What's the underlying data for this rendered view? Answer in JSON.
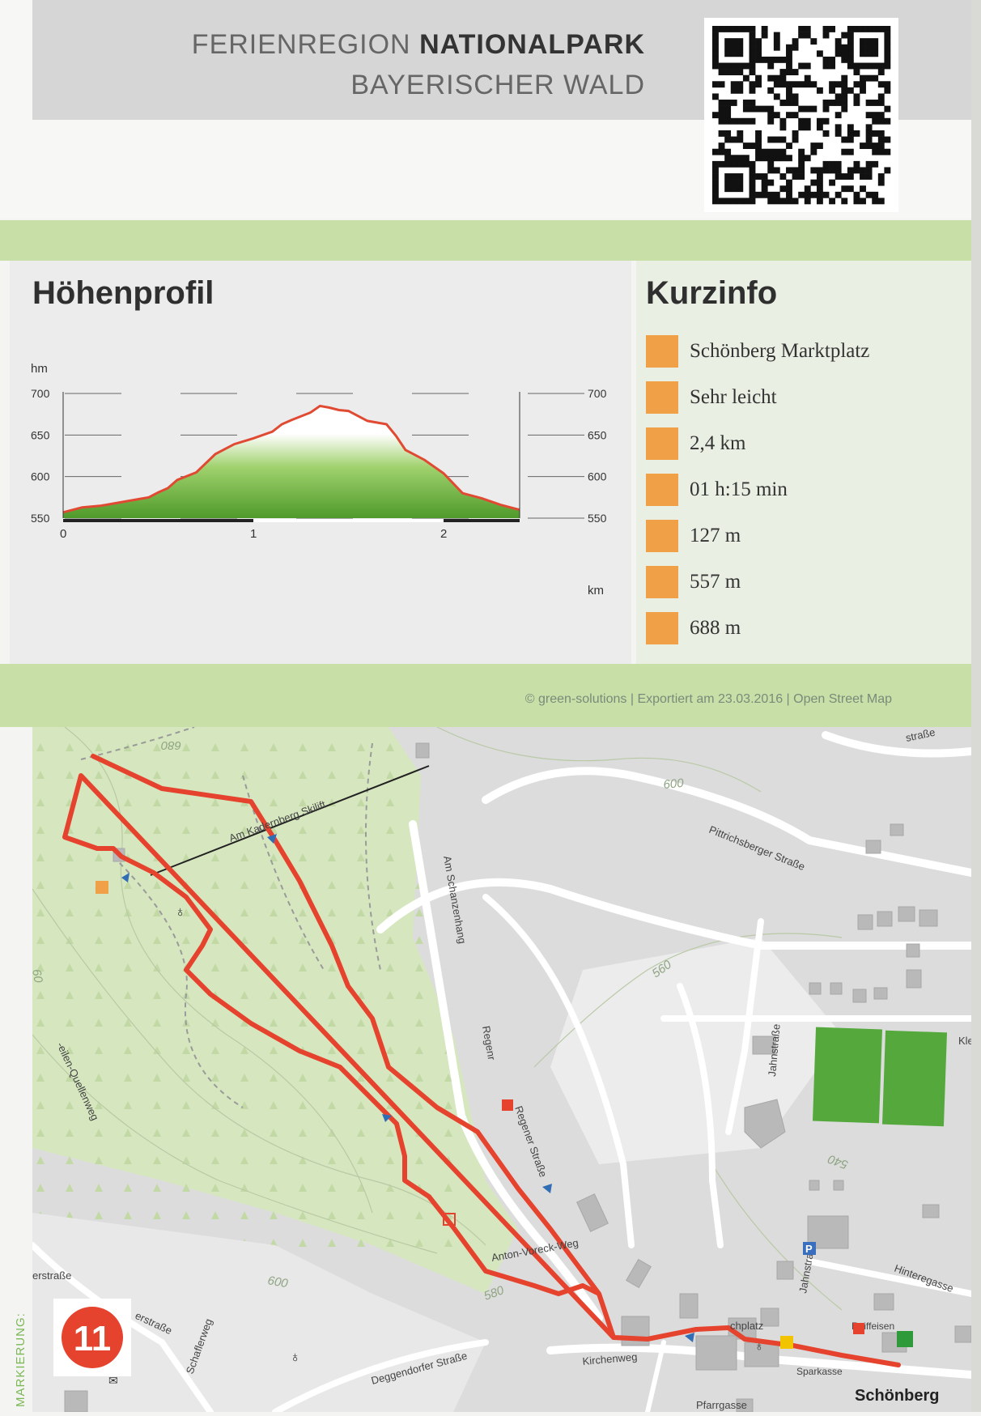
{
  "header": {
    "brand_light": "FERIENREGION",
    "brand_bold": "NATIONALPARK",
    "brand_line2": "BAYERISCHER WALD",
    "qr_icon": "qr-code-icon"
  },
  "profile": {
    "title": "Höhenprofil"
  },
  "chart_data": {
    "type": "area",
    "title": "Höhenprofil",
    "xlabel": "km",
    "ylabel": "hm",
    "xlim": [
      0,
      2.4
    ],
    "ylim": [
      550,
      700
    ],
    "x_ticks": [
      "0",
      "1",
      "2"
    ],
    "y_ticks": [
      "550",
      "600",
      "650",
      "700"
    ],
    "grid": true,
    "series": [
      {
        "x": [
          0,
          0.1,
          0.2,
          0.3,
          0.4,
          0.45,
          0.5,
          0.55,
          0.6,
          0.7,
          0.8,
          0.9,
          1.0,
          1.1,
          1.15,
          1.2,
          1.3,
          1.35,
          1.4,
          1.45,
          1.5,
          1.6,
          1.7,
          1.75,
          1.8,
          1.9,
          2.0,
          2.05,
          2.1,
          2.2,
          2.3,
          2.4
        ],
        "values": [
          557,
          563,
          565,
          569,
          573,
          575,
          581,
          586,
          596,
          605,
          627,
          639,
          646,
          654,
          663,
          668,
          677,
          685,
          683,
          680,
          679,
          667,
          663,
          649,
          632,
          620,
          604,
          592,
          580,
          574,
          566,
          560
        ]
      }
    ],
    "colors": {
      "line": "#e04a33",
      "fill_top": "#ffffff",
      "fill_bottom": "#5ea532"
    }
  },
  "kurzinfo": {
    "title": "Kurzinfo",
    "items": [
      {
        "icon": "start-point-icon",
        "text": "Schönberg Marktplatz"
      },
      {
        "icon": "difficulty-icon",
        "text": "Sehr leicht"
      },
      {
        "icon": "distance-icon",
        "text": "2,4 km"
      },
      {
        "icon": "duration-icon",
        "text": "01 h:15 min"
      },
      {
        "icon": "ascent-icon",
        "text": "127 m"
      },
      {
        "icon": "lowest-point-icon",
        "text": "557 m"
      },
      {
        "icon": "highest-point-icon",
        "text": "688 m"
      }
    ],
    "accent": "#f0a046"
  },
  "credits": "© green-solutions | Exportiert am 23.03.2016 | Open Street Map",
  "map": {
    "streets": {
      "skilift": "Am Kadernberg Skilift",
      "pittrichsberger": "Pittrichsberger Straße",
      "schanzenhang": "Am Schanzenhang",
      "regener": "Regener Straße",
      "regen": "Regenr",
      "quellenweg": "-eilen-Quellenweg",
      "anton": "Anton-Voreck-Weg",
      "jahn": "Jahnstraße",
      "jahn2": "Jahnstraße",
      "hinteregasse": "Hinteregasse",
      "kirchenweg": "Kirchenweg",
      "deggendorfer": "Deggendorfer Straße",
      "pfarrgasse": "Pfarrgasse",
      "marktplatz": "chplatz",
      "strasse_left": "erstraße",
      "strasse_left2": "erstraße",
      "schaflerweg": "Schaflerweg",
      "ebrase": "straße",
      "kle": "Kle"
    },
    "contours": [
      "680",
      "600",
      "560",
      "540",
      "600",
      "580",
      "60"
    ],
    "places": {
      "town": "Schönberg",
      "raiffeisen": "Raiffeisen",
      "sparkasse": "Sparkasse"
    },
    "colors": {
      "route": "#e5432e",
      "forest": "#d8e8c2",
      "road": "#ffffff",
      "building": "#b9b9b9",
      "sports": "#55a93c",
      "base": "#dcdcdc"
    }
  },
  "sidebar": {
    "markierung": "MARKIERUNG:",
    "route_number": "11"
  }
}
